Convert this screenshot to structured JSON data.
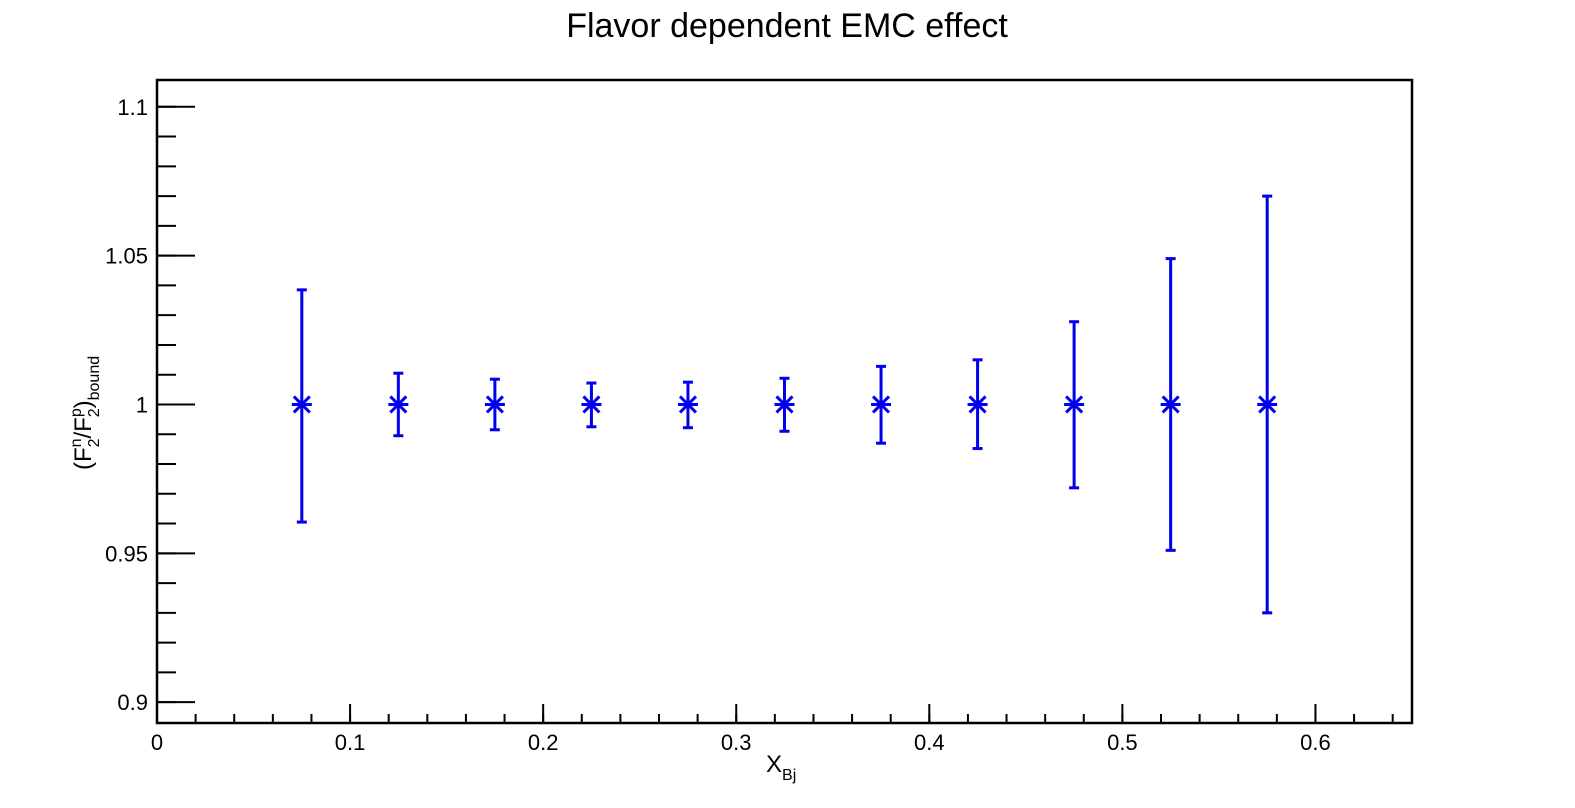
{
  "chart_data": {
    "type": "scatter",
    "title": "Flavor dependent EMC effect",
    "xlabel": {
      "main": "X",
      "sub": "Bj"
    },
    "ylabel": {
      "open": "(",
      "f1": "F",
      "sub1": "2",
      "sup1": "n",
      "slash": "/",
      "f2": "F",
      "sub2": "2",
      "sup2": "p",
      "close": ")",
      "subend": "bound"
    },
    "xlim": [
      0,
      0.65
    ],
    "ylim": [
      0.893,
      1.109
    ],
    "x_ticks": [
      {
        "value": 0,
        "label": "0"
      },
      {
        "value": 0.1,
        "label": "0.1"
      },
      {
        "value": 0.2,
        "label": "0.2"
      },
      {
        "value": 0.3,
        "label": "0.3"
      },
      {
        "value": 0.4,
        "label": "0.4"
      },
      {
        "value": 0.5,
        "label": "0.5"
      },
      {
        "value": 0.6,
        "label": "0.6"
      }
    ],
    "y_ticks": [
      {
        "value": 0.9,
        "label": "0.9"
      },
      {
        "value": 0.95,
        "label": "0.95"
      },
      {
        "value": 1.0,
        "label": "1"
      },
      {
        "value": 1.05,
        "label": "1.05"
      },
      {
        "value": 1.1,
        "label": "1.1"
      }
    ],
    "x_minor_step": 0.02,
    "y_minor_step": 0.01,
    "grid": false,
    "color": "#0000ee",
    "points": [
      {
        "x": 0.075,
        "y": 1.0,
        "err_low": 0.0395,
        "err_high": 0.0385
      },
      {
        "x": 0.125,
        "y": 1.0,
        "err_low": 0.0105,
        "err_high": 0.0105
      },
      {
        "x": 0.175,
        "y": 1.0,
        "err_low": 0.0085,
        "err_high": 0.0085
      },
      {
        "x": 0.225,
        "y": 1.0,
        "err_low": 0.0075,
        "err_high": 0.0072
      },
      {
        "x": 0.275,
        "y": 1.0,
        "err_low": 0.0078,
        "err_high": 0.0075
      },
      {
        "x": 0.325,
        "y": 1.0,
        "err_low": 0.009,
        "err_high": 0.0088
      },
      {
        "x": 0.375,
        "y": 1.0,
        "err_low": 0.013,
        "err_high": 0.0128
      },
      {
        "x": 0.425,
        "y": 1.0,
        "err_low": 0.0148,
        "err_high": 0.015
      },
      {
        "x": 0.475,
        "y": 1.0,
        "err_low": 0.028,
        "err_high": 0.0278
      },
      {
        "x": 0.525,
        "y": 1.0,
        "err_low": 0.049,
        "err_high": 0.049
      },
      {
        "x": 0.575,
        "y": 1.0,
        "err_low": 0.07,
        "err_high": 0.07
      }
    ]
  }
}
